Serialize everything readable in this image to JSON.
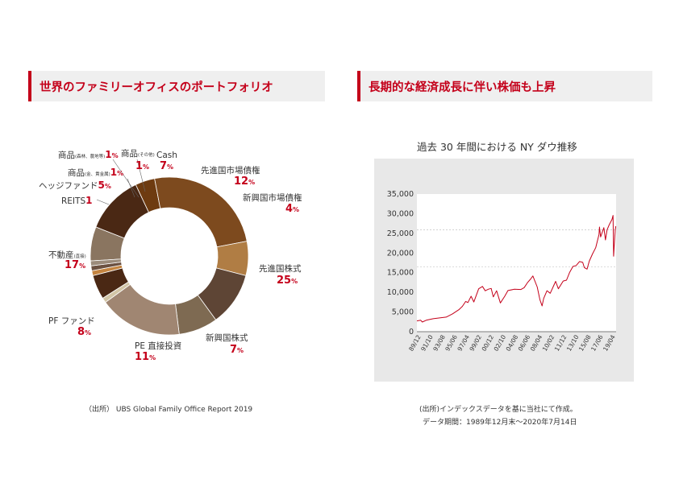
{
  "left": {
    "title": "世界のファミリーオフィスのポートフォリオ",
    "source": "（出所） UBS Global Family Office Report 2019"
  },
  "right": {
    "title": "長期的な経済成長に伴い株価も上昇",
    "source_line1": "(出所)インデックスデータを基に当社にて作成。",
    "source_line2": "データ期間：1989年12月末〜2020年7月14日"
  },
  "pct_unit": "%",
  "chart_data": [
    {
      "type": "pie",
      "style": "donut",
      "slices": [
        {
          "label": "Cash",
          "value": 7,
          "color": "#8a7560"
        },
        {
          "label": "先進国市場債権",
          "value": 12,
          "color": "#4a2814"
        },
        {
          "label": "新興国市場債権",
          "value": 4,
          "color": "#6e3b10"
        },
        {
          "label": "先進国株式",
          "value": 25,
          "color": "#7d4a1e"
        },
        {
          "label": "新興国株式",
          "value": 7,
          "color": "#b07d44"
        },
        {
          "label": "PE 直接投資",
          "value": 11,
          "color": "#5e4535"
        },
        {
          "label": "PF ファンド",
          "value": 8,
          "color": "#7e6a52"
        },
        {
          "label": "不動産",
          "label_note": "(直接)",
          "value": 17,
          "color": "#a08672"
        },
        {
          "label": "REITS",
          "value": 1,
          "color": "#d2c5a6"
        },
        {
          "label": "ヘッジファンド",
          "value": 5,
          "color": "#4a2814"
        },
        {
          "label": "商品",
          "label_note": "(金、貴金属)",
          "value": 1,
          "color": "#c48440"
        },
        {
          "label": "商品",
          "label_note": "(森林、農地等)",
          "value": 1,
          "color": "#6b5040"
        },
        {
          "label": "商品",
          "label_note": "(その他)",
          "value": 1,
          "color": "#9b8b7b"
        }
      ]
    },
    {
      "type": "line",
      "title": "過去 30 年間における NY ダウ推移",
      "x_tick_labels": [
        "89/12",
        "91/10",
        "93/08",
        "95/06",
        "97/04",
        "99/02",
        "00/12",
        "02/10",
        "04/08",
        "06/06",
        "08/04",
        "10/02",
        "11/12",
        "13/10",
        "15/08",
        "17/06",
        "19/04"
      ],
      "y_tick_labels": [
        "0",
        "5,000",
        "10,000",
        "15,000",
        "20,000",
        "25,000",
        "30,000",
        "35,000"
      ],
      "ylim": [
        0,
        35000
      ],
      "reference_lines": [
        16500,
        25900
      ],
      "series": [
        {
          "color": "#c4001a",
          "x": [
            "1989-12",
            "1990-07",
            "1990-10",
            "1991-06",
            "1992-06",
            "1993-06",
            "1994-06",
            "1995-06",
            "1995-12",
            "1996-06",
            "1996-12",
            "1997-06",
            "1997-10",
            "1998-04",
            "1998-09",
            "1999-06",
            "2000-01",
            "2000-06",
            "2000-12",
            "2001-05",
            "2001-09",
            "2002-03",
            "2002-10",
            "2003-06",
            "2003-12",
            "2004-12",
            "2005-12",
            "2006-06",
            "2006-12",
            "2007-06",
            "2007-10",
            "2008-06",
            "2008-11",
            "2009-03",
            "2009-06",
            "2009-12",
            "2010-06",
            "2010-12",
            "2011-04",
            "2011-09",
            "2012-06",
            "2012-12",
            "2013-06",
            "2013-12",
            "2014-06",
            "2014-12",
            "2015-06",
            "2015-09",
            "2016-02",
            "2016-06",
            "2016-12",
            "2017-06",
            "2017-12",
            "2018-01",
            "2018-03",
            "2018-09",
            "2018-12",
            "2019-03",
            "2019-07",
            "2019-12",
            "2020-02",
            "2020-03",
            "2020-06",
            "2020-07"
          ],
          "y": [
            2750,
            2900,
            2450,
            2950,
            3300,
            3500,
            3700,
            4550,
            5100,
            5650,
            6450,
            7700,
            7400,
            9000,
            7550,
            10900,
            11500,
            10400,
            10800,
            11000,
            8850,
            10400,
            7300,
            9000,
            10450,
            10780,
            10720,
            11200,
            12460,
            13400,
            14160,
            11350,
            8150,
            6550,
            8450,
            10420,
            9770,
            11570,
            12800,
            10900,
            12880,
            13100,
            15130,
            16570,
            16830,
            17820,
            17620,
            16300,
            15900,
            17900,
            19760,
            21350,
            24720,
            26600,
            24100,
            26450,
            23330,
            25900,
            27200,
            28540,
            29550,
            19170,
            25800,
            26800
          ]
        }
      ]
    }
  ]
}
